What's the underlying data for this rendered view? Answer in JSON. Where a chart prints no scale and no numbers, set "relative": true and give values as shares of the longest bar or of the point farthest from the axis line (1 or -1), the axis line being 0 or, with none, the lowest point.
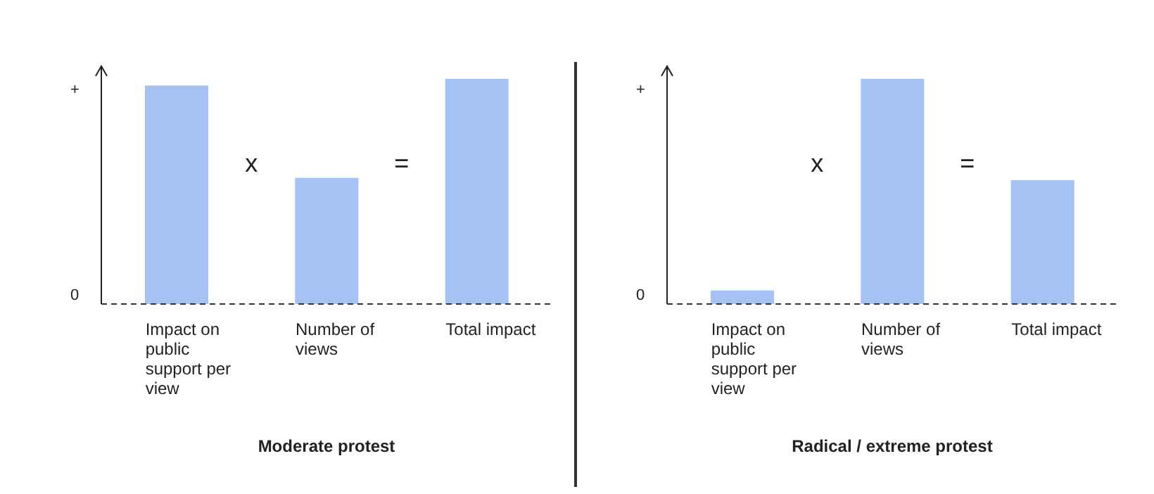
{
  "chart_data": [
    {
      "type": "bar",
      "title": "Moderate protest",
      "relative": true,
      "categories": [
        "Impact on public support per view",
        "Number of views",
        "Total impact"
      ],
      "values": [
        0.97,
        0.56,
        1
      ],
      "color": "#a4c2f4",
      "annotations": [
        "+",
        "0",
        "x",
        "="
      ]
    },
    {
      "type": "bar",
      "title": "Radical / extreme protest",
      "relative": true,
      "categories": [
        "Impact on public support per view",
        "Number of views",
        "Total impact"
      ],
      "values": [
        0.06,
        1,
        0.55
      ],
      "color": "#a4c2f4",
      "annotations": [
        "+",
        "0",
        "x",
        "="
      ]
    }
  ]
}
